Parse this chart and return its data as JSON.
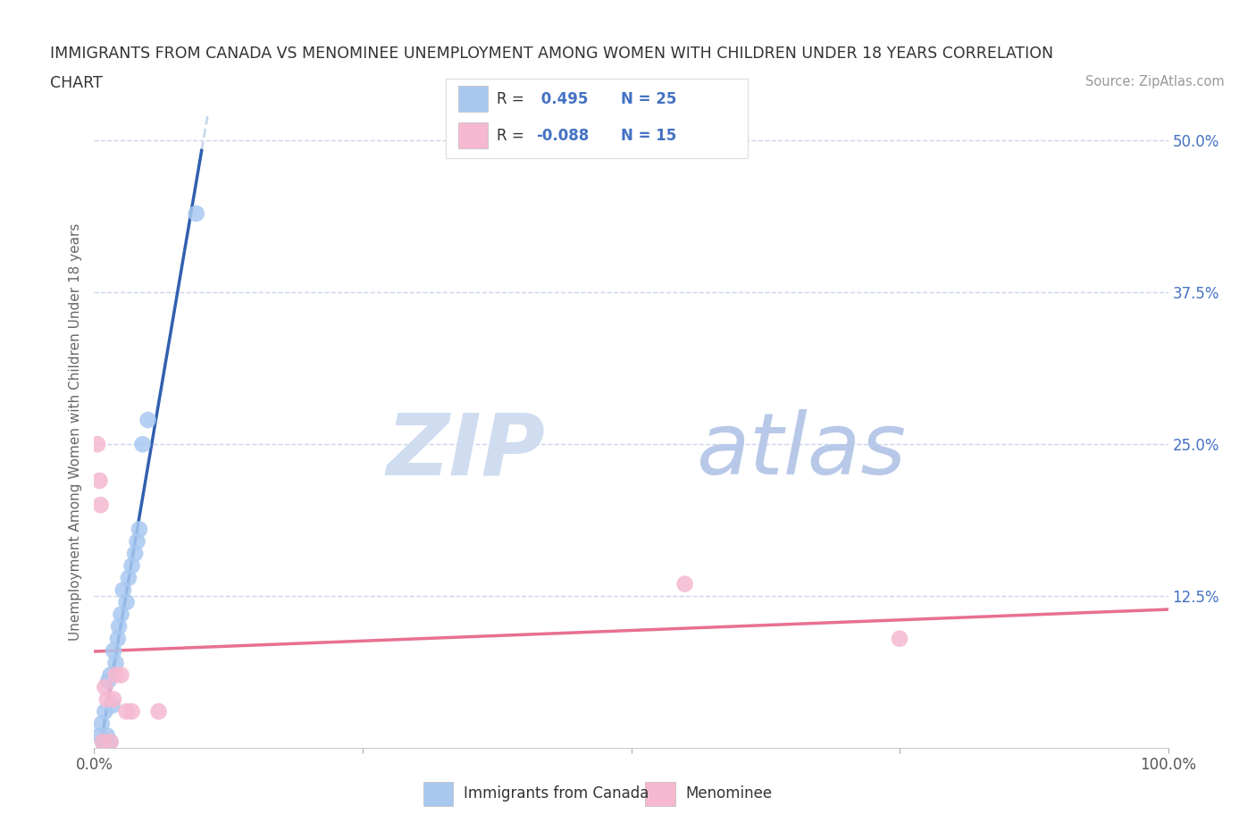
{
  "title_line1": "IMMIGRANTS FROM CANADA VS MENOMINEE UNEMPLOYMENT AMONG WOMEN WITH CHILDREN UNDER 18 YEARS CORRELATION",
  "title_line2": "CHART",
  "source": "Source: ZipAtlas.com",
  "ylabel": "Unemployment Among Women with Children Under 18 years",
  "xlim": [
    0.0,
    1.0
  ],
  "ylim": [
    0.0,
    0.52
  ],
  "xtick_vals": [
    0.0,
    0.25,
    0.5,
    0.75,
    1.0
  ],
  "xtick_labels": [
    "0.0%",
    "",
    "",
    "",
    "100.0%"
  ],
  "ytick_right_labels": [
    "50.0%",
    "37.5%",
    "25.0%",
    "12.5%"
  ],
  "ytick_right_values": [
    0.5,
    0.375,
    0.25,
    0.125
  ],
  "r_blue": 0.495,
  "n_blue": 25,
  "r_pink": -0.088,
  "n_pink": 15,
  "blue_color": "#A8C8F0",
  "pink_color": "#F5B8D0",
  "blue_line_color": "#3060B0",
  "pink_line_color": "#E87090",
  "trend_ext_color": "#C8D8EE",
  "background_color": "#FFFFFF",
  "grid_color": "#C8D4E8",
  "blue_scatter_x": [
    0.005,
    0.007,
    0.008,
    0.01,
    0.01,
    0.012,
    0.013,
    0.015,
    0.015,
    0.017,
    0.018,
    0.02,
    0.022,
    0.023,
    0.025,
    0.027,
    0.03,
    0.032,
    0.035,
    0.038,
    0.04,
    0.042,
    0.045,
    0.05,
    0.095
  ],
  "blue_scatter_y": [
    0.01,
    0.02,
    0.005,
    0.005,
    0.03,
    0.01,
    0.055,
    0.06,
    0.005,
    0.035,
    0.08,
    0.07,
    0.09,
    0.1,
    0.11,
    0.13,
    0.12,
    0.14,
    0.15,
    0.16,
    0.17,
    0.18,
    0.25,
    0.27,
    0.44
  ],
  "pink_scatter_x": [
    0.003,
    0.005,
    0.006,
    0.008,
    0.01,
    0.012,
    0.015,
    0.018,
    0.02,
    0.025,
    0.03,
    0.035,
    0.06,
    0.55,
    0.75
  ],
  "pink_scatter_y": [
    0.25,
    0.22,
    0.2,
    0.005,
    0.05,
    0.04,
    0.005,
    0.04,
    0.06,
    0.06,
    0.03,
    0.03,
    0.03,
    0.135,
    0.09
  ],
  "legend_r_color": "#4472C4",
  "legend_n_color": "#4472C4",
  "watermark_zip_color": "#D0DCF0",
  "watermark_atlas_color": "#B8C8E8"
}
